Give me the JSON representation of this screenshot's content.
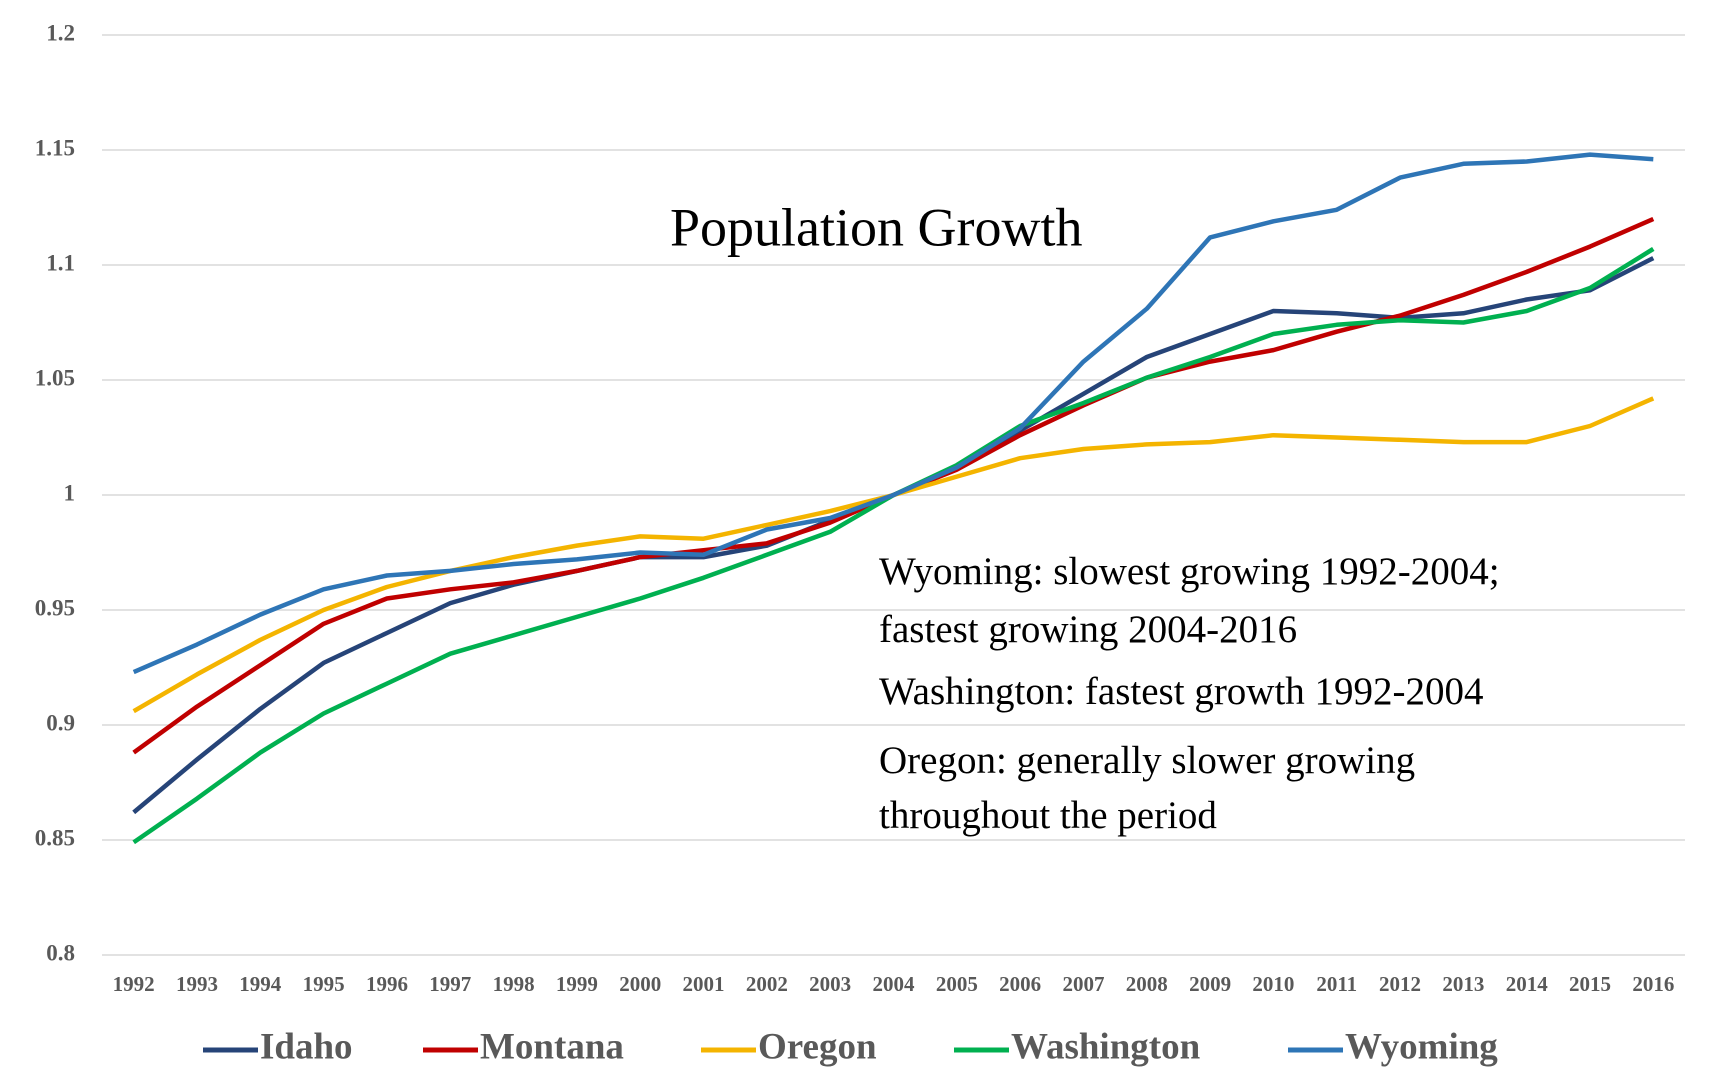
{
  "chart_data": {
    "type": "line",
    "title": "Population Growth",
    "annotations": [
      "Wyoming: slowest growing 1992-2004;",
      "fastest growing 2004-2016",
      "Washington: fastest growth 1992-2004",
      "Oregon: generally slower growing",
      "throughout the period"
    ],
    "categories": [
      "1992",
      "1993",
      "1994",
      "1995",
      "1996",
      "1997",
      "1998",
      "1999",
      "2000",
      "2001",
      "2002",
      "2003",
      "2004",
      "2005",
      "2006",
      "2007",
      "2008",
      "2009",
      "2010",
      "2011",
      "2012",
      "2013",
      "2014",
      "2015",
      "2016"
    ],
    "series": [
      {
        "name": "Idaho",
        "color": "#264478",
        "values": [
          0.862,
          0.885,
          0.907,
          0.927,
          0.94,
          0.953,
          0.961,
          0.967,
          0.973,
          0.973,
          0.978,
          0.989,
          1.0,
          1.012,
          1.028,
          1.044,
          1.06,
          1.07,
          1.08,
          1.079,
          1.077,
          1.079,
          1.085,
          1.089,
          1.103
        ]
      },
      {
        "name": "Montana",
        "color": "#c00000",
        "values": [
          0.888,
          0.908,
          0.926,
          0.944,
          0.955,
          0.959,
          0.962,
          0.967,
          0.973,
          0.976,
          0.979,
          0.988,
          1.0,
          1.011,
          1.026,
          1.039,
          1.051,
          1.058,
          1.063,
          1.071,
          1.078,
          1.087,
          1.097,
          1.108,
          1.12
        ]
      },
      {
        "name": "Oregon",
        "color": "#f4b400",
        "values": [
          0.906,
          0.922,
          0.937,
          0.95,
          0.96,
          0.967,
          0.973,
          0.978,
          0.982,
          0.981,
          0.987,
          0.993,
          1.0,
          1.008,
          1.016,
          1.02,
          1.022,
          1.023,
          1.026,
          1.025,
          1.024,
          1.023,
          1.023,
          1.03,
          1.042
        ]
      },
      {
        "name": "Washington",
        "color": "#00b050",
        "values": [
          0.849,
          0.868,
          0.888,
          0.905,
          0.918,
          0.931,
          0.939,
          0.947,
          0.955,
          0.964,
          0.974,
          0.984,
          1.0,
          1.013,
          1.03,
          1.04,
          1.051,
          1.06,
          1.07,
          1.074,
          1.076,
          1.075,
          1.08,
          1.09,
          1.107
        ]
      },
      {
        "name": "Wyoming",
        "color": "#2e75b6",
        "values": [
          0.923,
          0.935,
          0.948,
          0.959,
          0.965,
          0.967,
          0.97,
          0.972,
          0.975,
          0.974,
          0.985,
          0.99,
          1.0,
          1.012,
          1.029,
          1.058,
          1.081,
          1.112,
          1.119,
          1.124,
          1.138,
          1.144,
          1.145,
          1.148,
          1.146
        ]
      }
    ],
    "ylim": [
      0.8,
      1.2
    ],
    "yticks": [
      0.8,
      0.85,
      0.9,
      0.95,
      1,
      1.05,
      1.1,
      1.15,
      1.2
    ],
    "grid": true,
    "legend": "bottom"
  }
}
